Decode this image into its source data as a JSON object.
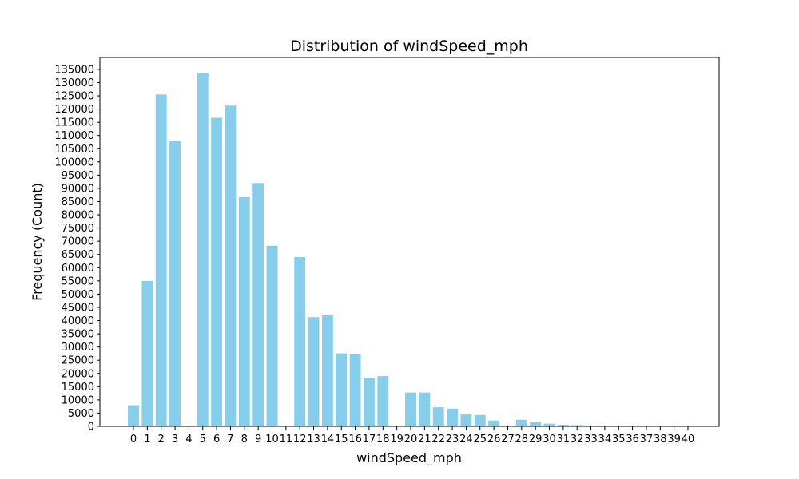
{
  "chart_data": {
    "type": "bar",
    "title": "Distribution of windSpeed_mph",
    "xlabel": "windSpeed_mph",
    "ylabel": "Frequency (Count)",
    "categories": [
      "0",
      "1",
      "2",
      "3",
      "4",
      "5",
      "6",
      "7",
      "8",
      "9",
      "10",
      "11",
      "12",
      "13",
      "14",
      "15",
      "16",
      "17",
      "18",
      "19",
      "20",
      "21",
      "22",
      "23",
      "24",
      "25",
      "26",
      "27",
      "28",
      "29",
      "30",
      "31",
      "32",
      "33",
      "34",
      "35",
      "36",
      "37",
      "38",
      "39",
      "40"
    ],
    "values": [
      8000,
      55000,
      125500,
      108000,
      0,
      133500,
      116700,
      121300,
      86700,
      92000,
      68300,
      0,
      64000,
      41300,
      42000,
      27600,
      27300,
      18300,
      19000,
      0,
      12800,
      12800,
      7200,
      6700,
      4500,
      4300,
      2200,
      0,
      2500,
      1500,
      1000,
      600,
      500,
      300,
      0,
      300,
      300,
      100,
      100,
      100,
      50
    ],
    "ylim": [
      0,
      139500
    ],
    "yticks": [
      0,
      5000,
      10000,
      15000,
      20000,
      25000,
      30000,
      35000,
      40000,
      45000,
      50000,
      55000,
      60000,
      65000,
      70000,
      75000,
      80000,
      85000,
      90000,
      95000,
      100000,
      105000,
      110000,
      115000,
      120000,
      125000,
      130000,
      135000
    ],
    "bar_color": "#87ceeb",
    "grid": false,
    "legend": "none"
  }
}
